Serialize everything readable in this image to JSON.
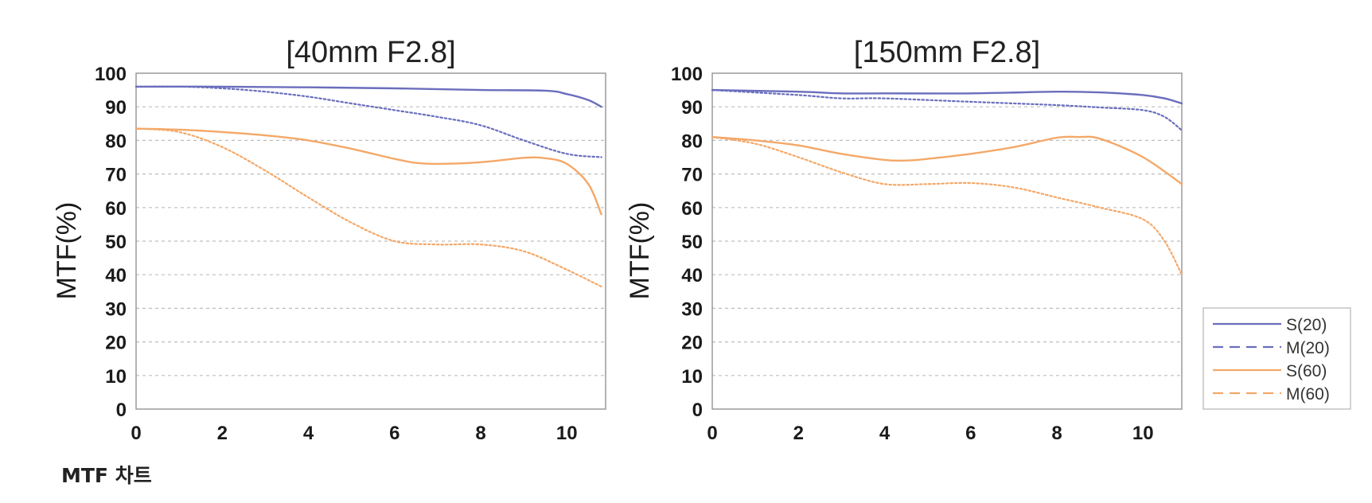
{
  "caption": "MTF 차트",
  "colors": {
    "s20": "#6a6ebd",
    "m20": "#6a6ebd",
    "s60": "#f4a868",
    "m60": "#f4a868",
    "grid": "#bdbdbd",
    "frame": "#9a9a9a"
  },
  "legend": [
    {
      "label": "S(20)",
      "style": "solid",
      "color": "#6a6ebd"
    },
    {
      "label": "M(20)",
      "style": "dashed",
      "color": "#6a6ebd"
    },
    {
      "label": "S(60)",
      "style": "solid",
      "color": "#f4a868"
    },
    {
      "label": "M(60)",
      "style": "dashed",
      "color": "#f4a868"
    }
  ],
  "chart_data": [
    {
      "type": "line",
      "title": "[40mm F2.8]",
      "ylabel": "MTF(%)",
      "xlabel": "",
      "xlim": [
        0,
        10.9
      ],
      "ylim": [
        0,
        100
      ],
      "xticks": [
        0,
        2,
        4,
        6,
        8,
        10
      ],
      "yticks": [
        0,
        10,
        20,
        30,
        40,
        50,
        60,
        70,
        80,
        90,
        100
      ],
      "grid": "horizontal dashed",
      "series": [
        {
          "name": "S(20)",
          "style": "solid",
          "color": "#6a6ebd",
          "x": [
            0,
            2,
            4,
            6,
            8,
            9.5,
            10,
            10.5,
            10.8
          ],
          "y": [
            96,
            96,
            95.8,
            95.5,
            95,
            94.8,
            93.8,
            92,
            90
          ]
        },
        {
          "name": "M(20)",
          "style": "dotted",
          "color": "#6a6ebd",
          "x": [
            0,
            1,
            2,
            3,
            4,
            5,
            6,
            7,
            8,
            9,
            10,
            10.8
          ],
          "y": [
            96,
            96,
            95.5,
            94.5,
            93,
            91,
            89,
            87,
            84.5,
            80,
            76,
            75
          ]
        },
        {
          "name": "S(60)",
          "style": "solid",
          "color": "#f4a868",
          "x": [
            0,
            1,
            2,
            3,
            4,
            5,
            6,
            6.5,
            7,
            8,
            9,
            9.5,
            10,
            10.5,
            10.8
          ],
          "y": [
            83.5,
            83.2,
            82.5,
            81.5,
            80,
            77.5,
            74.5,
            73.3,
            73,
            73.5,
            74.8,
            74.7,
            73,
            67,
            58
          ]
        },
        {
          "name": "M(60)",
          "style": "dotted",
          "color": "#f4a868",
          "x": [
            0,
            1,
            2,
            3,
            4,
            5,
            6,
            7,
            8,
            9,
            10,
            10.8
          ],
          "y": [
            83.5,
            82.5,
            78,
            71,
            63,
            55.5,
            50,
            49,
            49,
            47,
            41.5,
            36.5
          ]
        }
      ]
    },
    {
      "type": "line",
      "title": "[150mm F2.8]",
      "ylabel": "MTF(%)",
      "xlabel": "",
      "xlim": [
        0,
        10.9
      ],
      "ylim": [
        0,
        100
      ],
      "xticks": [
        0,
        2,
        4,
        6,
        8,
        10
      ],
      "yticks": [
        0,
        10,
        20,
        30,
        40,
        50,
        60,
        70,
        80,
        90,
        100
      ],
      "grid": "horizontal dashed",
      "series": [
        {
          "name": "S(20)",
          "style": "solid",
          "color": "#6a6ebd",
          "x": [
            0,
            2,
            3,
            4,
            6,
            8,
            9,
            10,
            10.5,
            10.9
          ],
          "y": [
            95,
            94.5,
            94,
            94,
            94,
            94.5,
            94.3,
            93.5,
            92.5,
            91
          ]
        },
        {
          "name": "M(20)",
          "style": "dotted",
          "color": "#6a6ebd",
          "x": [
            0,
            2,
            3,
            4,
            6,
            8,
            9,
            10,
            10.5,
            10.9
          ],
          "y": [
            95,
            93.5,
            92.5,
            92.5,
            91.5,
            90.5,
            89.8,
            89,
            87,
            83
          ]
        },
        {
          "name": "S(60)",
          "style": "solid",
          "color": "#f4a868",
          "x": [
            0,
            1,
            2,
            3,
            4,
            4.5,
            5,
            6,
            7,
            8,
            8.5,
            9,
            10,
            10.9
          ],
          "y": [
            81,
            80,
            78.5,
            76,
            74.2,
            74,
            74.5,
            76,
            78,
            80.8,
            81,
            80.5,
            75,
            67
          ]
        },
        {
          "name": "M(60)",
          "style": "dotted",
          "color": "#f4a868",
          "x": [
            0,
            1,
            2,
            3,
            4,
            5,
            6,
            7,
            8,
            9,
            10,
            10.5,
            10.9
          ],
          "y": [
            81,
            79,
            75,
            70.5,
            67,
            67,
            67.3,
            66,
            63,
            60,
            56.5,
            50,
            40
          ]
        }
      ]
    }
  ]
}
